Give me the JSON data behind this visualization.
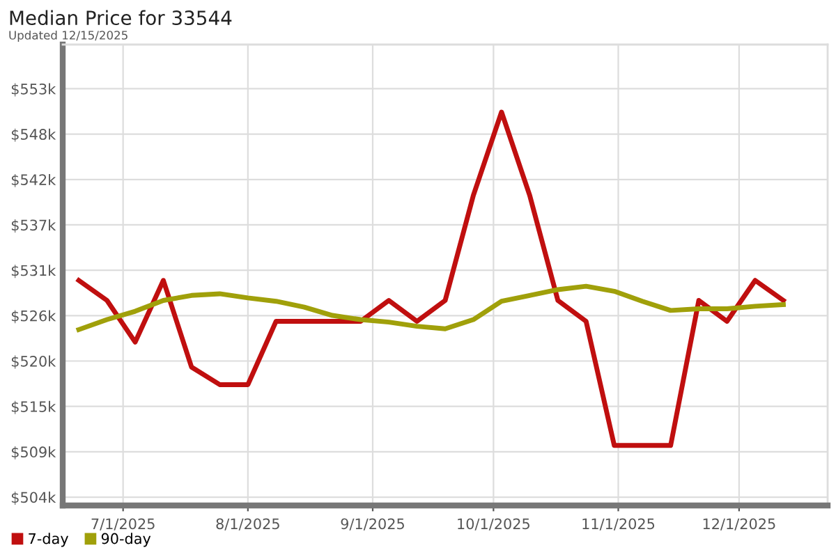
{
  "chart_data": {
    "type": "line",
    "title": "Median Price for 33544",
    "subtitle": "Updated 12/15/2025",
    "x": [
      "2025-06-20",
      "2025-06-27",
      "2025-07-04",
      "2025-07-11",
      "2025-07-18",
      "2025-07-25",
      "2025-08-01",
      "2025-08-08",
      "2025-08-15",
      "2025-08-22",
      "2025-08-29",
      "2025-09-05",
      "2025-09-12",
      "2025-09-19",
      "2025-09-26",
      "2025-10-03",
      "2025-10-10",
      "2025-10-17",
      "2025-10-24",
      "2025-10-31",
      "2025-11-07",
      "2025-11-14",
      "2025-11-21",
      "2025-11-28",
      "2025-12-05",
      "2025-12-12"
    ],
    "series": [
      {
        "name": "7-day",
        "color": "#c00f0f",
        "values": [
          530000,
          527600,
          522600,
          530000,
          519600,
          517500,
          517500,
          525100,
          525100,
          525100,
          525100,
          527600,
          525100,
          527600,
          540200,
          550200,
          540200,
          527600,
          525100,
          510200,
          510200,
          510200,
          527600,
          525100,
          530000,
          527600
        ]
      },
      {
        "name": "90-day",
        "color": "#a0a00a",
        "values": [
          524100,
          525300,
          526300,
          527600,
          528200,
          528400,
          527900,
          527500,
          526800,
          525800,
          525300,
          525000,
          524500,
          524200,
          525300,
          527500,
          528200,
          528900,
          529300,
          528700,
          527500,
          526400,
          526600,
          526600,
          526900,
          527100
        ]
      }
    ],
    "xlim": [
      "2025-06-16",
      "2025-12-23"
    ],
    "xticks": [
      {
        "value": "2025-07-01",
        "label": "7/1/2025"
      },
      {
        "value": "2025-08-01",
        "label": "8/1/2025"
      },
      {
        "value": "2025-09-01",
        "label": "9/1/2025"
      },
      {
        "value": "2025-10-01",
        "label": "10/1/2025"
      },
      {
        "value": "2025-11-01",
        "label": "11/1/2025"
      },
      {
        "value": "2025-12-01",
        "label": "12/1/2025"
      }
    ],
    "ylim": [
      503000,
      558300
    ],
    "yticks": [
      {
        "value": 504000,
        "label": "$504k"
      },
      {
        "value": 509444,
        "label": "$509k"
      },
      {
        "value": 514889,
        "label": "$515k"
      },
      {
        "value": 520333,
        "label": "$520k"
      },
      {
        "value": 525778,
        "label": "$526k"
      },
      {
        "value": 531222,
        "label": "$531k"
      },
      {
        "value": 536667,
        "label": "$537k"
      },
      {
        "value": 542111,
        "label": "$542k"
      },
      {
        "value": 547556,
        "label": "$548k"
      },
      {
        "value": 553000,
        "label": "$553k"
      }
    ],
    "grid": true,
    "legend": "bottom left",
    "marker": "none",
    "line_style": "solid"
  }
}
